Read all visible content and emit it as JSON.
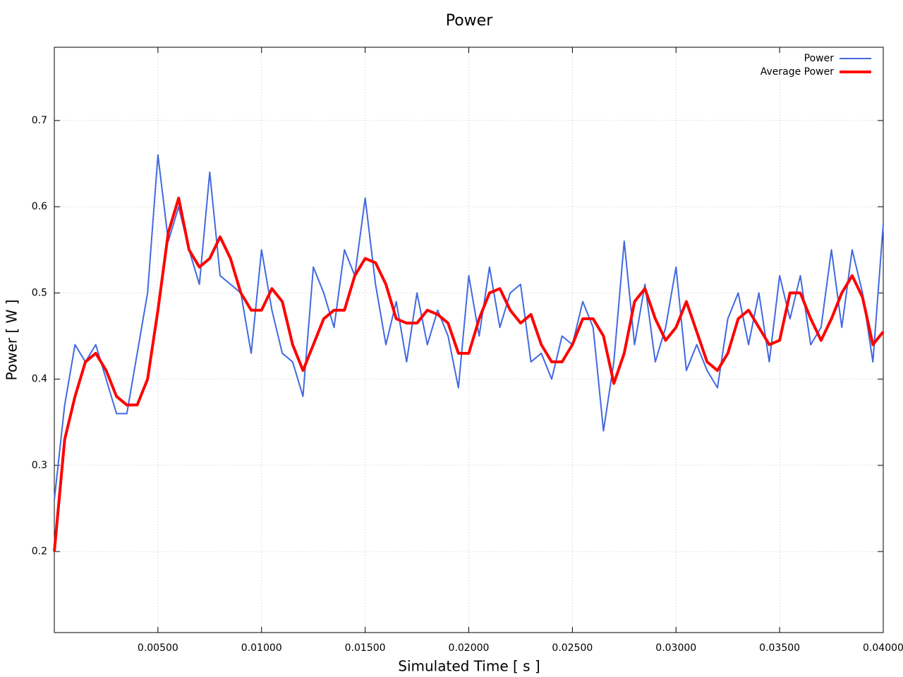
{
  "chart_data": {
    "type": "line",
    "title": "Power",
    "xlabel": "Simulated Time [ s ]",
    "ylabel": "Power [ W ]",
    "x": [
      0,
      0.0005,
      0.001,
      0.0015,
      0.002,
      0.0025,
      0.003,
      0.0035,
      0.004,
      0.0045,
      0.005,
      0.0055,
      0.006,
      0.0065,
      0.007,
      0.0075,
      0.008,
      0.0085,
      0.009,
      0.0095,
      0.01,
      0.0105,
      0.011,
      0.0115,
      0.012,
      0.0125,
      0.013,
      0.0135,
      0.014,
      0.0145,
      0.015,
      0.0155,
      0.016,
      0.0165,
      0.017,
      0.0175,
      0.018,
      0.0185,
      0.019,
      0.0195,
      0.02,
      0.0205,
      0.021,
      0.0215,
      0.022,
      0.0225,
      0.023,
      0.0235,
      0.024,
      0.0245,
      0.025,
      0.0255,
      0.026,
      0.0265,
      0.027,
      0.0275,
      0.028,
      0.0285,
      0.029,
      0.0295,
      0.03,
      0.0305,
      0.031,
      0.0315,
      0.032,
      0.0325,
      0.033,
      0.0335,
      0.034,
      0.0345,
      0.035,
      0.0355,
      0.036,
      0.0365,
      0.037,
      0.0375,
      0.038,
      0.0385,
      0.039,
      0.0395,
      0.04
    ],
    "series": [
      {
        "name": "Power",
        "color": "#4169e1",
        "width": 2,
        "values": [
          0.26,
          0.37,
          0.44,
          0.42,
          0.44,
          0.4,
          0.36,
          0.36,
          0.43,
          0.5,
          0.66,
          0.56,
          0.6,
          0.55,
          0.51,
          0.64,
          0.52,
          0.51,
          0.5,
          0.43,
          0.55,
          0.48,
          0.43,
          0.42,
          0.38,
          0.53,
          0.5,
          0.46,
          0.55,
          0.52,
          0.61,
          0.51,
          0.44,
          0.49,
          0.42,
          0.5,
          0.44,
          0.48,
          0.45,
          0.39,
          0.52,
          0.45,
          0.53,
          0.46,
          0.5,
          0.51,
          0.42,
          0.43,
          0.4,
          0.45,
          0.44,
          0.49,
          0.46,
          0.34,
          0.42,
          0.56,
          0.44,
          0.51,
          0.42,
          0.46,
          0.53,
          0.41,
          0.44,
          0.41,
          0.39,
          0.47,
          0.5,
          0.44,
          0.5,
          0.42,
          0.52,
          0.47,
          0.52,
          0.44,
          0.46,
          0.55,
          0.46,
          0.55,
          0.5,
          0.42,
          0.58
        ]
      },
      {
        "name": "Average Power",
        "color": "#ff0000",
        "width": 4,
        "values": [
          0.2,
          0.33,
          0.38,
          0.42,
          0.43,
          0.41,
          0.38,
          0.37,
          0.37,
          0.4,
          0.48,
          0.57,
          0.61,
          0.55,
          0.53,
          0.54,
          0.565,
          0.54,
          0.5,
          0.48,
          0.48,
          0.505,
          0.49,
          0.44,
          0.41,
          0.44,
          0.47,
          0.48,
          0.48,
          0.52,
          0.54,
          0.535,
          0.51,
          0.47,
          0.465,
          0.465,
          0.48,
          0.475,
          0.465,
          0.43,
          0.43,
          0.47,
          0.5,
          0.505,
          0.48,
          0.465,
          0.475,
          0.44,
          0.42,
          0.42,
          0.44,
          0.47,
          0.47,
          0.45,
          0.395,
          0.43,
          0.49,
          0.505,
          0.47,
          0.445,
          0.46,
          0.49,
          0.455,
          0.42,
          0.41,
          0.43,
          0.47,
          0.48,
          0.46,
          0.44,
          0.445,
          0.5,
          0.5,
          0.47,
          0.445,
          0.47,
          0.5,
          0.52,
          0.495,
          0.44,
          0.455
        ]
      }
    ],
    "xlim": [
      0,
      0.04
    ],
    "xticks": [
      {
        "value": 0.005,
        "label": "0.00500"
      },
      {
        "value": 0.01,
        "label": "0.01000"
      },
      {
        "value": 0.015,
        "label": "0.01500"
      },
      {
        "value": 0.02,
        "label": "0.02000"
      },
      {
        "value": 0.025,
        "label": "0.02500"
      },
      {
        "value": 0.03,
        "label": "0.03000"
      },
      {
        "value": 0.035,
        "label": "0.03500"
      },
      {
        "value": 0.04,
        "label": "0.04000"
      }
    ],
    "ylim": [
      0.106,
      0.785
    ],
    "yticks": [
      0.2,
      0.3,
      0.4,
      0.5,
      0.6,
      0.7
    ],
    "grid": true,
    "legend": "top-right"
  }
}
